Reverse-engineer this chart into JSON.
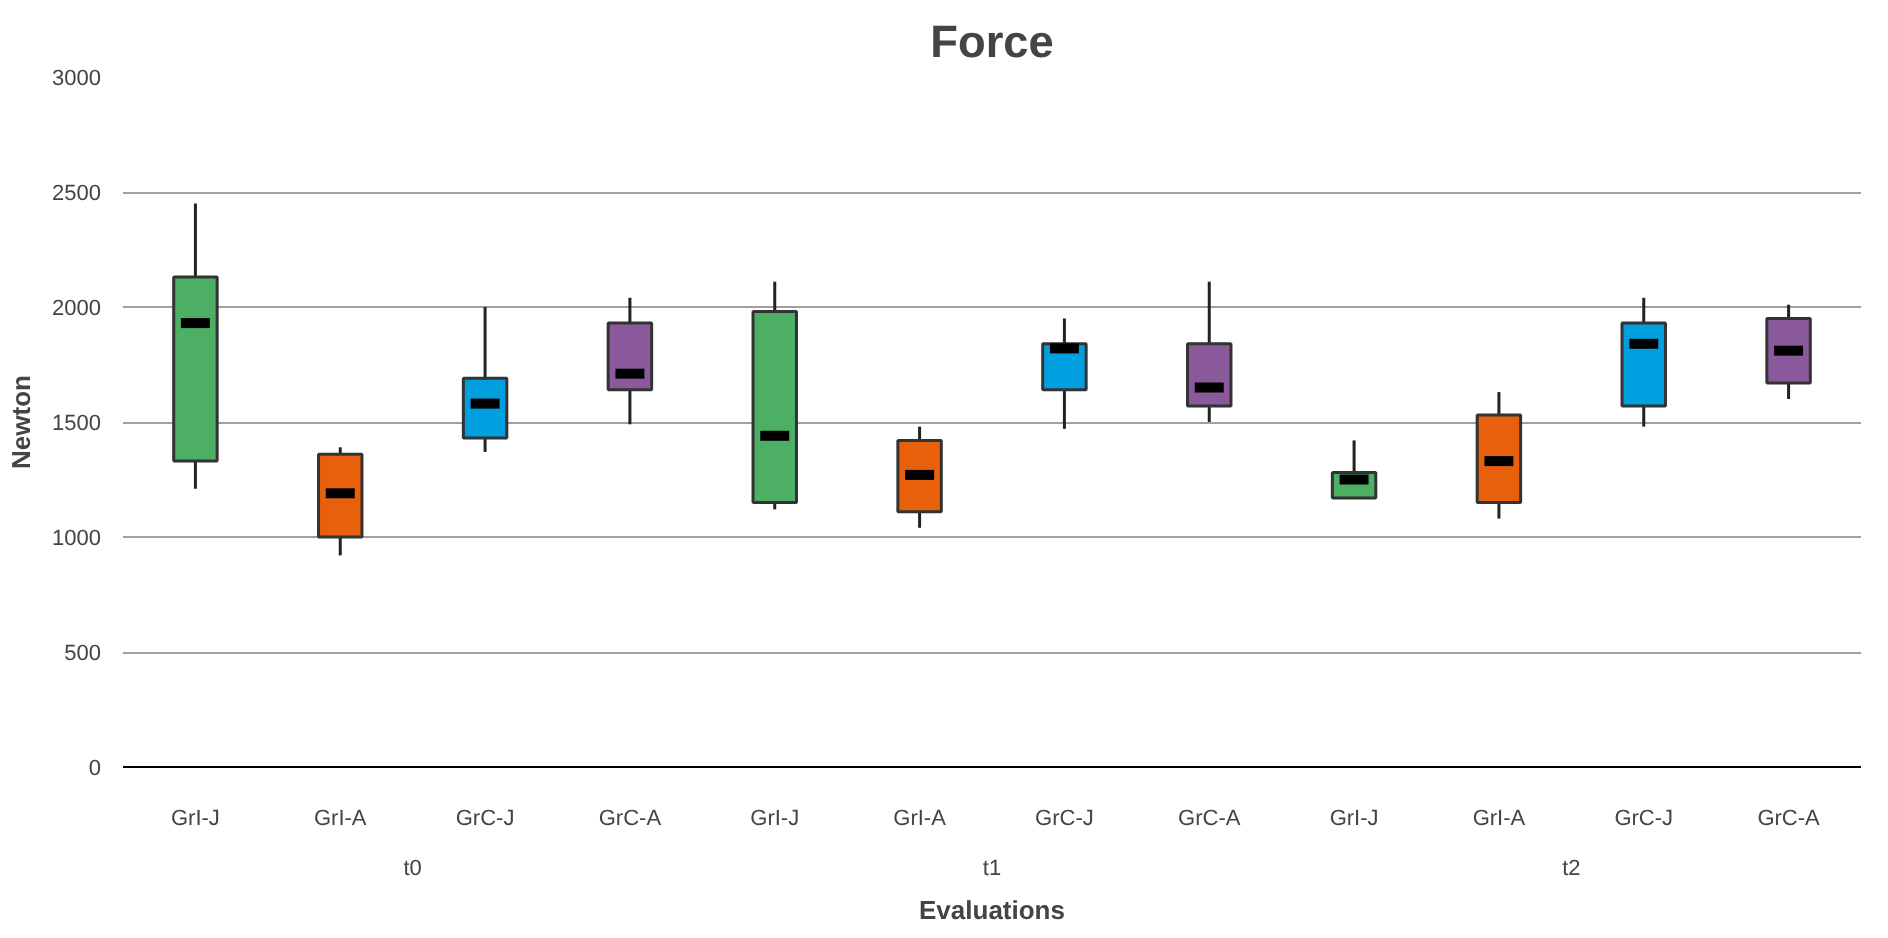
{
  "chart_data": {
    "type": "box",
    "title": "Force",
    "xlabel": "Evaluations",
    "ylabel": "Newton",
    "categories": [
      "GrI-J",
      "GrI-A",
      "GrC-J",
      "GrC-A",
      "GrI-J",
      "GrI-A",
      "GrC-J",
      "GrC-A",
      "GrI-J",
      "GrI-A",
      "GrC-J",
      "GrC-A"
    ],
    "annotations": [
      "t0",
      "t1",
      "t2"
    ],
    "ylim": [
      0,
      3000
    ],
    "yticks": [
      0,
      500,
      1000,
      1500,
      2000,
      2500,
      3000
    ],
    "grid": "y",
    "colors": [
      "#4caf64",
      "#e8600c",
      "#009fe0",
      "#8a5a9c",
      "#4caf64",
      "#e8600c",
      "#009fe0",
      "#8a5a9c",
      "#4caf64",
      "#e8600c",
      "#009fe0",
      "#8a5a9c"
    ],
    "boxes": [
      {
        "low": 1210,
        "q1": 1330,
        "median": 1930,
        "q3": 2130,
        "high": 2450
      },
      {
        "low": 920,
        "q1": 1000,
        "median": 1190,
        "q3": 1360,
        "high": 1390
      },
      {
        "low": 1370,
        "q1": 1430,
        "median": 1580,
        "q3": 1690,
        "high": 2000
      },
      {
        "low": 1490,
        "q1": 1640,
        "median": 1710,
        "q3": 1930,
        "high": 2040
      },
      {
        "low": 1120,
        "q1": 1150,
        "median": 1440,
        "q3": 1980,
        "high": 2110
      },
      {
        "low": 1040,
        "q1": 1110,
        "median": 1270,
        "q3": 1420,
        "high": 1480
      },
      {
        "low": 1470,
        "q1": 1640,
        "median": 1820,
        "q3": 1840,
        "high": 1950
      },
      {
        "low": 1500,
        "q1": 1570,
        "median": 1650,
        "q3": 1840,
        "high": 2110
      },
      {
        "low": 1170,
        "q1": 1170,
        "median": 1250,
        "q3": 1280,
        "high": 1420
      },
      {
        "low": 1080,
        "q1": 1150,
        "median": 1330,
        "q3": 1530,
        "high": 1630
      },
      {
        "low": 1480,
        "q1": 1570,
        "median": 1840,
        "q3": 1930,
        "high": 2040
      },
      {
        "low": 1600,
        "q1": 1670,
        "median": 1810,
        "q3": 1950,
        "high": 2010
      }
    ]
  }
}
